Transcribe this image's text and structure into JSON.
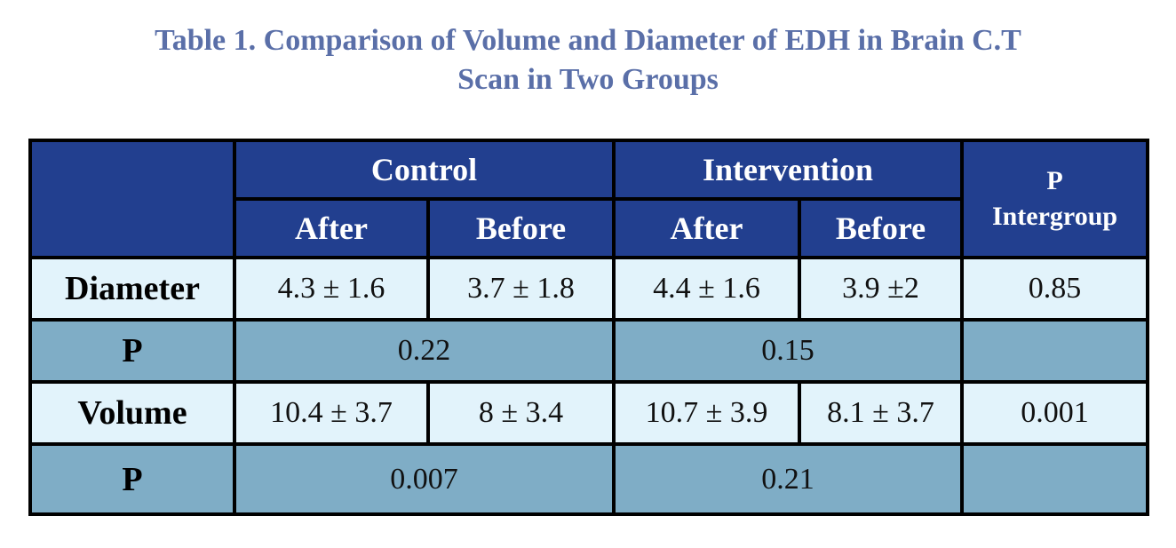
{
  "title": {
    "line1": "Table 1. Comparison of Volume and Diameter of EDH in Brain C.T",
    "line2": "Scan in Two Groups"
  },
  "header": {
    "corner": "",
    "groups": [
      "Control",
      "Intervention"
    ],
    "p_intergroup_line1": "P",
    "p_intergroup_line2": "Intergroup",
    "subheads": [
      "After",
      "Before",
      "After",
      "Before"
    ]
  },
  "rows": {
    "diameter": {
      "label": "Diameter",
      "values": [
        "4.3 ± 1.6",
        "3.7 ± 1.8",
        "4.4 ± 1.6",
        "3.9 ±2"
      ],
      "p_intergroup": "0.85"
    },
    "diameter_p": {
      "label": "P",
      "control": "0.22",
      "intervention": "0.15",
      "p_intergroup": ""
    },
    "volume": {
      "label": "Volume",
      "values": [
        "10.4 ± 3.7",
        "8 ± 3.4",
        "10.7 ± 3.9",
        "8.1 ± 3.7"
      ],
      "p_intergroup": "0.001"
    },
    "volume_p": {
      "label": "P",
      "control": "0.007",
      "intervention": "0.21",
      "p_intergroup": ""
    }
  },
  "colors": {
    "title": "#5a6fa8",
    "header_bg": "#223f8f",
    "light_row": "#e2f3fb",
    "dark_row": "#7fadc6",
    "border": "#000000"
  }
}
